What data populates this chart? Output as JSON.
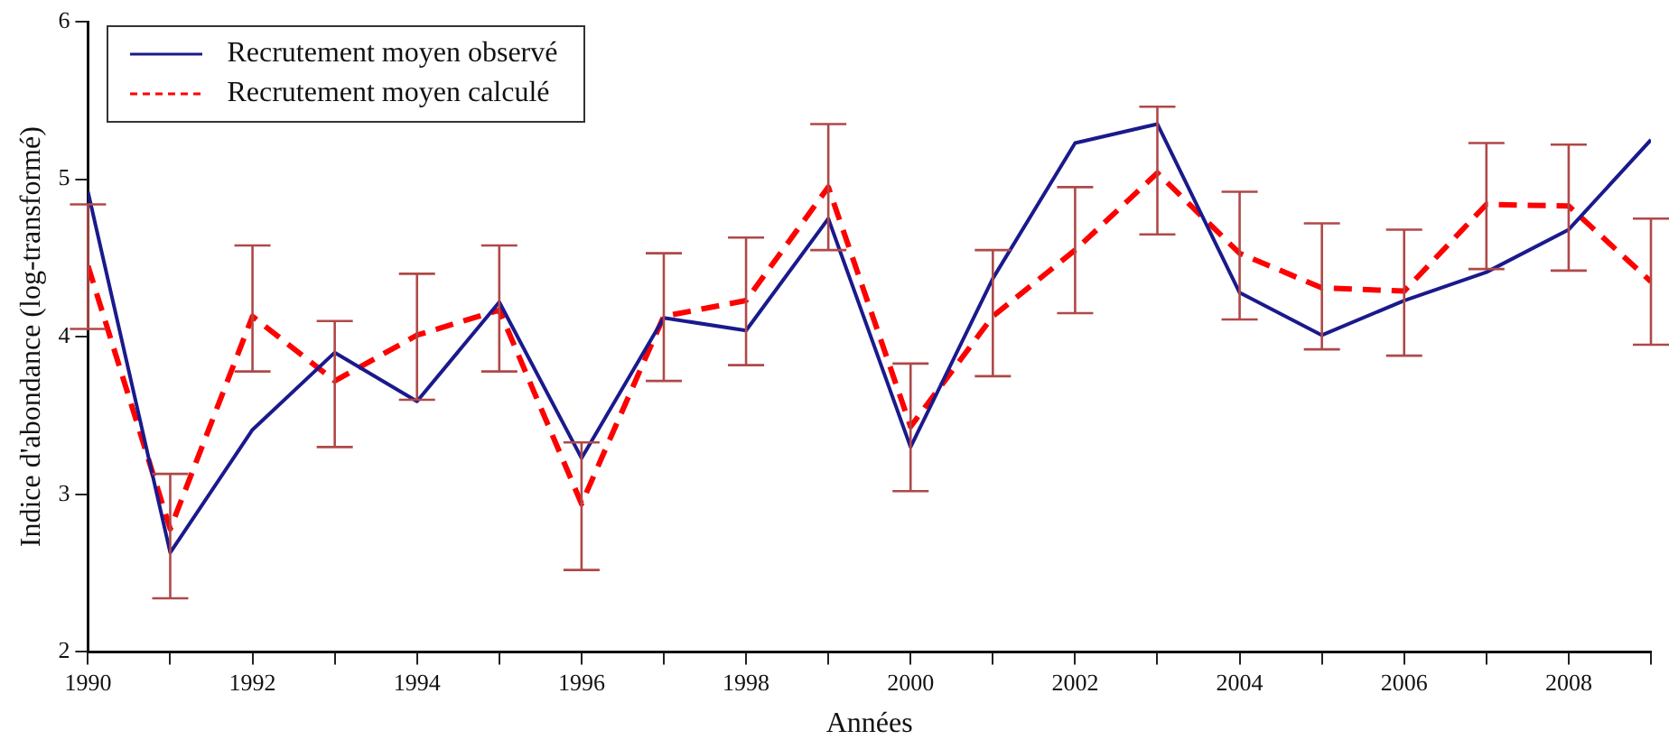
{
  "chart_data": {
    "type": "line",
    "xlabel": "Années",
    "ylabel": "Indice d'abondance (log-transformé)",
    "x": [
      1990,
      1991,
      1992,
      1993,
      1994,
      1995,
      1996,
      1997,
      1998,
      1999,
      2000,
      2001,
      2002,
      2003,
      2004,
      2005,
      2006,
      2007,
      2008,
      2009
    ],
    "series": [
      {
        "name": "Recrutement moyen observé",
        "color": "#1a1a8c",
        "line_style": "solid",
        "values": [
          4.92,
          2.63,
          3.41,
          3.9,
          3.59,
          4.22,
          3.23,
          4.12,
          4.04,
          4.75,
          3.3,
          4.37,
          5.23,
          5.35,
          4.28,
          4.01,
          4.23,
          4.41,
          4.68,
          5.25
        ]
      },
      {
        "name": "Recrutement moyen calculé",
        "color": "#ff0000",
        "line_style": "dashed",
        "values": [
          4.45,
          2.78,
          4.13,
          3.72,
          4.01,
          4.17,
          2.94,
          4.13,
          4.23,
          4.95,
          3.43,
          4.13,
          4.55,
          5.04,
          4.53,
          4.31,
          4.29,
          4.84,
          4.83,
          4.35
        ],
        "errors": [
          [
            4.05,
            4.84
          ],
          [
            2.34,
            3.13
          ],
          [
            3.78,
            4.58
          ],
          [
            3.3,
            4.1
          ],
          [
            3.6,
            4.4
          ],
          [
            3.78,
            4.58
          ],
          [
            2.52,
            3.33
          ],
          [
            3.72,
            4.53
          ],
          [
            3.82,
            4.63
          ],
          [
            4.55,
            5.35
          ],
          [
            3.02,
            3.83
          ],
          [
            3.75,
            4.55
          ],
          [
            4.15,
            4.95
          ],
          [
            4.65,
            5.46
          ],
          [
            4.11,
            4.92
          ],
          [
            3.92,
            4.72
          ],
          [
            3.88,
            4.68
          ],
          [
            4.43,
            5.23
          ],
          [
            4.42,
            5.22
          ],
          [
            3.95,
            4.75
          ]
        ]
      }
    ],
    "xlim": [
      1990,
      2009
    ],
    "xticks": [
      1990,
      {
        "value": 1991,
        "label": null
      },
      1992,
      {
        "value": 1993,
        "label": null
      },
      1994,
      {
        "value": 1995,
        "label": null
      },
      1996,
      {
        "value": 1997,
        "label": null
      },
      1998,
      {
        "value": 1999,
        "label": null
      },
      2000,
      {
        "value": 2001,
        "label": null
      },
      2002,
      {
        "value": 2003,
        "label": null
      },
      2004,
      {
        "value": 2005,
        "label": null
      },
      2006,
      {
        "value": 2007,
        "label": null
      },
      2008,
      {
        "value": 2009,
        "label": null
      }
    ],
    "ylim": [
      2,
      6
    ],
    "yticks": [
      2,
      3,
      4,
      5,
      6
    ],
    "grid": false,
    "legend": "top left",
    "marker": "none"
  }
}
